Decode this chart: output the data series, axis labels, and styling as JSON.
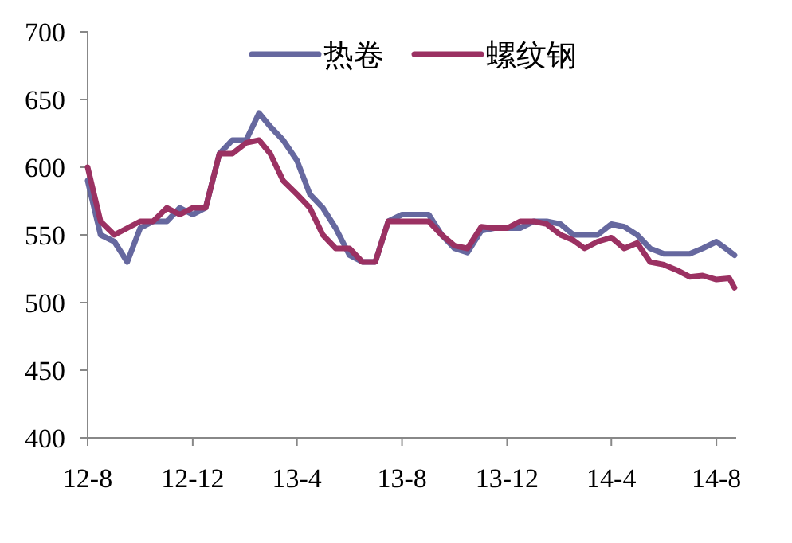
{
  "chart_data": {
    "type": "line",
    "x": [
      "2012-08-01",
      "2012-08-16",
      "2012-09-01",
      "2012-09-16",
      "2012-10-01",
      "2012-10-16",
      "2012-11-01",
      "2012-11-16",
      "2012-12-01",
      "2012-12-16",
      "2013-01-01",
      "2013-01-16",
      "2013-02-01",
      "2013-02-16",
      "2013-03-01",
      "2013-03-16",
      "2013-04-01",
      "2013-04-16",
      "2013-05-01",
      "2013-05-16",
      "2013-06-01",
      "2013-06-16",
      "2013-07-01",
      "2013-07-16",
      "2013-08-01",
      "2013-08-16",
      "2013-09-01",
      "2013-09-16",
      "2013-10-01",
      "2013-10-16",
      "2013-11-01",
      "2013-11-16",
      "2013-12-01",
      "2013-12-16",
      "2014-01-01",
      "2014-01-16",
      "2014-02-01",
      "2014-02-16",
      "2014-03-01",
      "2014-03-16",
      "2014-04-01",
      "2014-04-16",
      "2014-05-01",
      "2014-05-16",
      "2014-06-01",
      "2014-06-16",
      "2014-07-01",
      "2014-07-16",
      "2014-08-01",
      "2014-08-16",
      "2014-08-22"
    ],
    "series": [
      {
        "name": "热卷",
        "color": "#66689f",
        "values": [
          590,
          550,
          545,
          530,
          555,
          560,
          560,
          570,
          565,
          570,
          610,
          620,
          620,
          640,
          630,
          620,
          605,
          580,
          570,
          555,
          535,
          530,
          530,
          560,
          565,
          565,
          565,
          550,
          540,
          537,
          553,
          555,
          555,
          555,
          560,
          560,
          558,
          550,
          550,
          550,
          558,
          556,
          550,
          540,
          536,
          536,
          536,
          540,
          545,
          538,
          535
        ]
      },
      {
        "name": "螺纹钢",
        "color": "#9b3162",
        "values": [
          600,
          560,
          550,
          555,
          560,
          560,
          570,
          565,
          570,
          570,
          610,
          610,
          618,
          620,
          610,
          590,
          580,
          570,
          550,
          540,
          540,
          530,
          530,
          560,
          560,
          560,
          560,
          550,
          542,
          540,
          556,
          555,
          555,
          560,
          560,
          558,
          550,
          546,
          540,
          545,
          548,
          540,
          544,
          530,
          528,
          524,
          519,
          520,
          517,
          518,
          511
        ]
      }
    ],
    "xlim": [
      "2012-08-01",
      "2014-08-24"
    ],
    "xticks": [
      {
        "value": "2012-08-01",
        "label": "12-8"
      },
      {
        "value": "2012-12-01",
        "label": "12-12"
      },
      {
        "value": "2013-04-01",
        "label": "13-4"
      },
      {
        "value": "2013-08-01",
        "label": "13-8"
      },
      {
        "value": "2013-12-01",
        "label": "13-12"
      },
      {
        "value": "2014-04-01",
        "label": "14-4"
      },
      {
        "value": "2014-08-01",
        "label": "14-8"
      }
    ],
    "ylim": [
      400,
      700
    ],
    "yticks": [
      400,
      450,
      500,
      550,
      600,
      650,
      700
    ],
    "grid": false,
    "legend": "top",
    "line_style": "solid",
    "marker": "none"
  }
}
